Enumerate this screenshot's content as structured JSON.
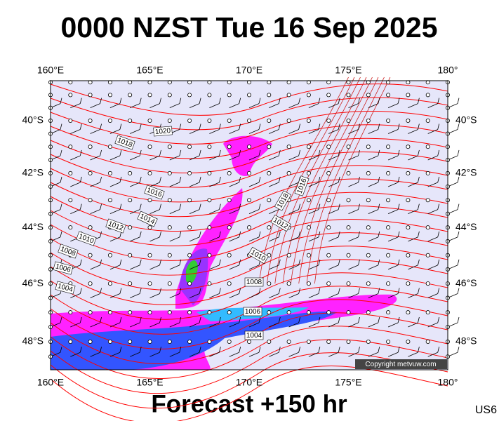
{
  "header": {
    "title": "0000 NZST Tue 16 Sep 2025"
  },
  "footer": {
    "forecast": "Forecast +150 hr",
    "code": "US6",
    "copyright": "Copyright metvuw.com"
  },
  "map": {
    "lon_labels": [
      "160°E",
      "165°E",
      "170°E",
      "175°E",
      "180°"
    ],
    "lat_labels": [
      "40°S",
      "42°S",
      "44°S",
      "46°S",
      "48°S"
    ],
    "isobar_labels": [
      "1020",
      "1018",
      "1016",
      "1014",
      "1012",
      "1010",
      "1008",
      "1006",
      "1004",
      "1018",
      "1016",
      "1012",
      "1010",
      "1008",
      "1006",
      "1004"
    ]
  }
}
